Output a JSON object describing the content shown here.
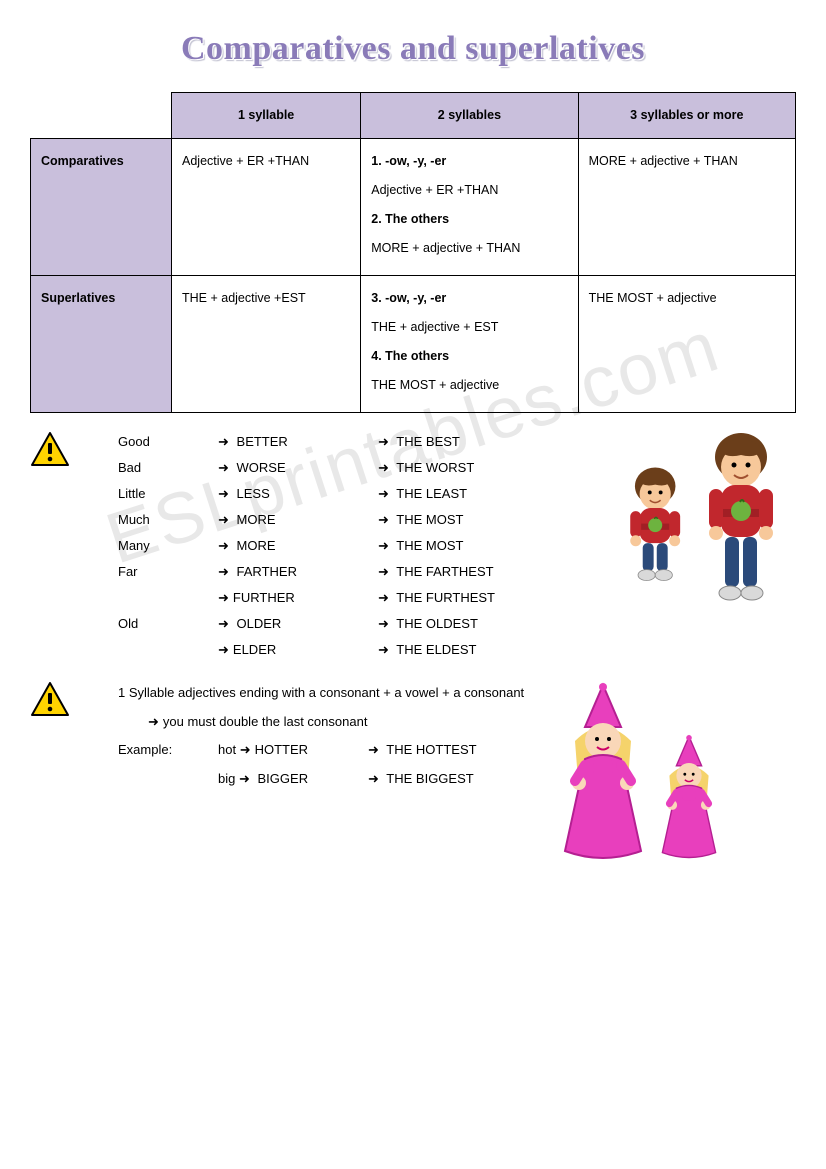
{
  "title": "Comparatives and superlatives",
  "title_color": "#8a7bb8",
  "header_bg": "#c9bfdc",
  "table": {
    "cols": [
      "1 syllable",
      "2 syllables",
      "3 syllables or more"
    ],
    "rows": [
      {
        "label": "Comparatives",
        "cells": [
          "Adjective + ER +THAN",
          "1. -ow, -y, -er\nAdjective + ER +THAN\n2. The others\nMORE + adjective + THAN",
          "MORE + adjective + THAN"
        ]
      },
      {
        "label": "Superlatives",
        "cells": [
          "THE + adjective +EST",
          "3. -ow, -y, -er\nTHE + adjective + EST\n4. The others\nTHE MOST + adjective",
          "THE MOST + adjective"
        ]
      }
    ]
  },
  "irregular": [
    {
      "base": "Good",
      "comp": "BETTER",
      "sup": "THE BEST"
    },
    {
      "base": "Bad",
      "comp": "WORSE",
      "sup": "THE WORST"
    },
    {
      "base": "Little",
      "comp": "LESS",
      "sup": "THE LEAST"
    },
    {
      "base": "Much",
      "comp": "MORE",
      "sup": "THE MOST"
    },
    {
      "base": "Many",
      "comp": "MORE",
      "sup": "THE MOST"
    },
    {
      "base": "Far",
      "comp": "FARTHER",
      "sup": "THE FARTHEST"
    },
    {
      "base": "",
      "comp": "FURTHER",
      "sup": "THE FURTHEST"
    },
    {
      "base": "Old",
      "comp": "OLDER",
      "sup": "THE OLDEST"
    },
    {
      "base": "",
      "comp": "ELDER",
      "sup": "THE ELDEST"
    }
  ],
  "note": {
    "line1": "1 Syllable adjectives ending with a consonant + a vowel + a consonant",
    "line2": "you must double the last consonant",
    "example_label": "Example:",
    "examples": [
      {
        "base": "hot",
        "comp": "HOTTER",
        "sup": "THE HOTTEST"
      },
      {
        "base": "big",
        "comp": "BIGGER",
        "sup": "THE BIGGEST"
      }
    ]
  },
  "colors": {
    "boy_hair": "#6b3e1a",
    "boy_skin": "#f7c89a",
    "boy_sweater": "#c1272d",
    "boy_apple": "#6db33f",
    "boy_pants": "#2b4a7a",
    "boy_shoes": "#d9d9d9",
    "princess_dress": "#e83fbd",
    "princess_hair": "#f5d36b",
    "princess_skin": "#f9d7b8",
    "warn_fill": "#ffd400",
    "warn_border": "#000"
  },
  "watermark": "ESLprintables.com"
}
